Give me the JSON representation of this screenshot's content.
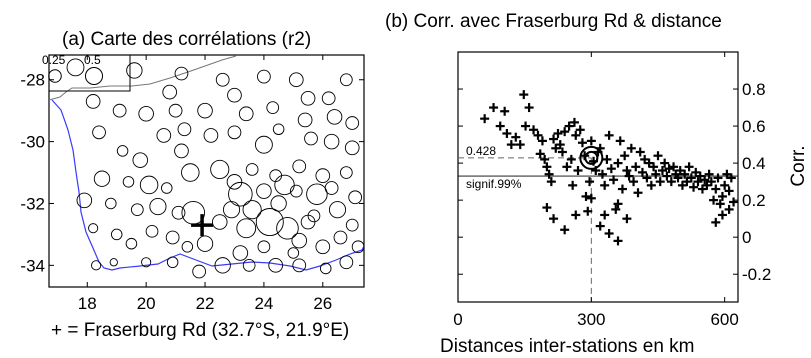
{
  "chart_data": [
    {
      "type": "scatter",
      "subtype": "bubble-map",
      "title": "(a) Carte des corrélations (r2)",
      "xlabel": "+ = Fraserburg Rd (32.7°S, 21.9°E)",
      "ylabel": "",
      "xlim": [
        16.7,
        27.4
      ],
      "ylim": [
        -34.7,
        -27.2
      ],
      "xticks": [
        18,
        20,
        22,
        24,
        26
      ],
      "yticks": [
        -28,
        -30,
        -32,
        -34
      ],
      "xtick_labels": [
        "18",
        "20",
        "22",
        "24",
        "26"
      ],
      "ytick_labels": [
        "-28",
        "-30",
        "-32",
        "-34"
      ],
      "size_legend": [
        {
          "label": "0.25",
          "r2": 0.25
        },
        {
          "label": "0.5",
          "r2": 0.5
        }
      ],
      "station": {
        "lon": 21.9,
        "lat": -32.7,
        "marker": "+"
      },
      "coastline_color": "#3a3aff",
      "points": [
        [
          17.6,
          -27.6,
          0.1
        ],
        [
          19.6,
          -27.7,
          0.08
        ],
        [
          20.8,
          -28.4,
          0.06
        ],
        [
          21.2,
          -27.8,
          0.05
        ],
        [
          22.6,
          -28.0,
          0.05
        ],
        [
          23.0,
          -28.5,
          0.06
        ],
        [
          24.0,
          -27.9,
          0.05
        ],
        [
          25.1,
          -28.0,
          0.06
        ],
        [
          25.5,
          -28.6,
          0.06
        ],
        [
          26.2,
          -28.6,
          0.05
        ],
        [
          26.8,
          -28.0,
          0.04
        ],
        [
          18.2,
          -28.7,
          0.06
        ],
        [
          19.1,
          -29.0,
          0.05
        ],
        [
          20.0,
          -29.1,
          0.07
        ],
        [
          21.0,
          -29.0,
          0.05
        ],
        [
          22.0,
          -29.0,
          0.07
        ],
        [
          23.4,
          -29.1,
          0.06
        ],
        [
          24.3,
          -28.9,
          0.04
        ],
        [
          25.4,
          -29.3,
          0.06
        ],
        [
          26.4,
          -29.2,
          0.07
        ],
        [
          27.0,
          -29.4,
          0.05
        ],
        [
          18.4,
          -29.7,
          0.05
        ],
        [
          19.2,
          -30.3,
          0.03
        ],
        [
          19.8,
          -30.6,
          0.07
        ],
        [
          20.6,
          -29.8,
          0.06
        ],
        [
          21.3,
          -29.6,
          0.05
        ],
        [
          22.2,
          -29.8,
          0.06
        ],
        [
          23.0,
          -29.7,
          0.05
        ],
        [
          24.0,
          -30.1,
          0.1
        ],
        [
          24.5,
          -29.6,
          0.03
        ],
        [
          25.6,
          -29.9,
          0.05
        ],
        [
          26.3,
          -30.0,
          0.07
        ],
        [
          27.0,
          -30.2,
          0.06
        ],
        [
          18.5,
          -31.2,
          0.08
        ],
        [
          19.4,
          -31.3,
          0.03
        ],
        [
          20.1,
          -31.4,
          0.11
        ],
        [
          20.7,
          -31.5,
          0.03
        ],
        [
          21.5,
          -31.0,
          0.11
        ],
        [
          22.5,
          -30.9,
          0.12
        ],
        [
          23.0,
          -31.3,
          0.07
        ],
        [
          23.6,
          -30.9,
          0.04
        ],
        [
          24.4,
          -31.1,
          0.04
        ],
        [
          25.2,
          -30.8,
          0.05
        ],
        [
          26.0,
          -31.1,
          0.06
        ],
        [
          26.8,
          -31.0,
          0.04
        ],
        [
          17.9,
          -31.9,
          0.07
        ],
        [
          18.8,
          -32.0,
          0.03
        ],
        [
          19.7,
          -32.2,
          0.04
        ],
        [
          20.4,
          -32.1,
          0.09
        ],
        [
          21.1,
          -32.3,
          0.05
        ],
        [
          21.6,
          -32.3,
          0.2
        ],
        [
          22.5,
          -32.6,
          0.07
        ],
        [
          23.2,
          -31.7,
          0.22
        ],
        [
          24.0,
          -31.6,
          0.07
        ],
        [
          24.5,
          -32.0,
          0.08
        ],
        [
          25.1,
          -31.6,
          0.04
        ],
        [
          25.8,
          -31.7,
          0.16
        ],
        [
          26.5,
          -32.2,
          0.09
        ],
        [
          27.1,
          -31.8,
          0.05
        ],
        [
          18.2,
          -32.8,
          0.02
        ],
        [
          19.0,
          -33.0,
          0.03
        ],
        [
          19.5,
          -33.3,
          0.03
        ],
        [
          20.2,
          -32.9,
          0.04
        ],
        [
          20.9,
          -33.1,
          0.05
        ],
        [
          21.4,
          -33.4,
          0.03
        ],
        [
          22.0,
          -33.3,
          0.08
        ],
        [
          23.4,
          -32.8,
          0.13
        ],
        [
          23.2,
          -33.6,
          0.07
        ],
        [
          24.2,
          -32.6,
          0.3
        ],
        [
          24.0,
          -33.4,
          0.04
        ],
        [
          24.8,
          -32.8,
          0.18
        ],
        [
          25.2,
          -33.2,
          0.07
        ],
        [
          25.5,
          -32.6,
          0.06
        ],
        [
          26.0,
          -33.4,
          0.06
        ],
        [
          26.6,
          -33.1,
          0.05
        ],
        [
          27.0,
          -32.7,
          0.04
        ],
        [
          18.3,
          -34.0,
          0.02
        ],
        [
          18.9,
          -33.9,
          0.01
        ],
        [
          20.0,
          -33.9,
          0.02
        ],
        [
          20.9,
          -33.9,
          0.03
        ],
        [
          21.8,
          -34.2,
          0.05
        ],
        [
          22.6,
          -34.0,
          0.08
        ],
        [
          23.5,
          -34.0,
          0.04
        ],
        [
          24.4,
          -34.0,
          0.06
        ],
        [
          25.2,
          -34.0,
          0.05
        ],
        [
          26.1,
          -34.1,
          0.03
        ],
        [
          26.8,
          -33.9,
          0.05
        ],
        [
          27.2,
          -33.4,
          0.04
        ],
        [
          22.9,
          -32.2,
          0.09
        ],
        [
          24.7,
          -31.4,
          0.14
        ],
        [
          25.7,
          -32.4,
          0.04
        ],
        [
          26.3,
          -31.5,
          0.05
        ],
        [
          25.0,
          -33.6,
          0.03
        ],
        [
          21.2,
          -30.3,
          0.06
        ],
        [
          23.6,
          -32.2,
          0.12
        ]
      ]
    },
    {
      "type": "scatter",
      "title": "(b) Corr. avec Fraserburg Rd & distance",
      "xlabel": "Distances inter-stations en km",
      "ylabel": "Corr.",
      "xlim": [
        0,
        630
      ],
      "ylim": [
        -0.35,
        1.0
      ],
      "xticks": [
        0,
        300,
        600
      ],
      "yticks": [
        -0.2,
        0,
        0.2,
        0.4,
        0.6,
        0.8
      ],
      "xtick_labels": [
        "0",
        "300",
        "600"
      ],
      "ytick_labels": [
        "-0.2",
        "0",
        "0.2",
        "0.4",
        "0.6",
        "0.8"
      ],
      "yaxis_position": "right",
      "highlight": {
        "x": 300,
        "y": 0.428,
        "label": "0.428"
      },
      "threshold": {
        "y": 0.33,
        "label": "signif.99%"
      },
      "points": [
        [
          60,
          0.64
        ],
        [
          80,
          0.7
        ],
        [
          95,
          0.6
        ],
        [
          105,
          0.68
        ],
        [
          110,
          0.56
        ],
        [
          120,
          0.5
        ],
        [
          130,
          0.54
        ],
        [
          140,
          0.5
        ],
        [
          148,
          0.77
        ],
        [
          152,
          0.6
        ],
        [
          160,
          0.7
        ],
        [
          170,
          0.58
        ],
        [
          180,
          0.55
        ],
        [
          185,
          0.45
        ],
        [
          190,
          0.52
        ],
        [
          195,
          0.42
        ],
        [
          200,
          0.38
        ],
        [
          205,
          0.34
        ],
        [
          210,
          0.3
        ],
        [
          215,
          0.53
        ],
        [
          220,
          0.48
        ],
        [
          225,
          0.56
        ],
        [
          230,
          0.5
        ],
        [
          235,
          0.46
        ],
        [
          240,
          0.57
        ],
        [
          245,
          0.38
        ],
        [
          250,
          0.6
        ],
        [
          255,
          0.42
        ],
        [
          258,
          0.28
        ],
        [
          262,
          0.62
        ],
        [
          265,
          0.55
        ],
        [
          270,
          0.36
        ],
        [
          275,
          0.58
        ],
        [
          280,
          0.51
        ],
        [
          285,
          0.44
        ],
        [
          288,
          0.22
        ],
        [
          292,
          0.14
        ],
        [
          296,
          0.3
        ],
        [
          300,
          0.52
        ],
        [
          305,
          0.41
        ],
        [
          310,
          0.36
        ],
        [
          315,
          0.46
        ],
        [
          320,
          0.48
        ],
        [
          325,
          0.34
        ],
        [
          330,
          0.28
        ],
        [
          335,
          0.42
        ],
        [
          340,
          0.55
        ],
        [
          345,
          0.37
        ],
        [
          350,
          0.31
        ],
        [
          355,
          0.15
        ],
        [
          360,
          0.4
        ],
        [
          365,
          0.52
        ],
        [
          370,
          0.26
        ],
        [
          375,
          0.44
        ],
        [
          380,
          0.36
        ],
        [
          385,
          0.33
        ],
        [
          390,
          0.48
        ],
        [
          395,
          0.3
        ],
        [
          400,
          0.38
        ],
        [
          405,
          0.24
        ],
        [
          410,
          0.46
        ],
        [
          415,
          0.35
        ],
        [
          420,
          0.42
        ],
        [
          425,
          0.32
        ],
        [
          430,
          0.4
        ],
        [
          435,
          0.28
        ],
        [
          440,
          0.38
        ],
        [
          445,
          0.34
        ],
        [
          450,
          0.44
        ],
        [
          455,
          0.3
        ],
        [
          460,
          0.36
        ],
        [
          465,
          0.4
        ],
        [
          470,
          0.33
        ],
        [
          475,
          0.37
        ],
        [
          480,
          0.3
        ],
        [
          485,
          0.38
        ],
        [
          490,
          0.34
        ],
        [
          495,
          0.32
        ],
        [
          500,
          0.36
        ],
        [
          505,
          0.28
        ],
        [
          510,
          0.34
        ],
        [
          515,
          0.3
        ],
        [
          520,
          0.38
        ],
        [
          525,
          0.32
        ],
        [
          530,
          0.27
        ],
        [
          535,
          0.35
        ],
        [
          540,
          0.3
        ],
        [
          545,
          0.33
        ],
        [
          550,
          0.26
        ],
        [
          555,
          0.31
        ],
        [
          560,
          0.28
        ],
        [
          565,
          0.34
        ],
        [
          570,
          0.3
        ],
        [
          575,
          0.2
        ],
        [
          580,
          0.26
        ],
        [
          585,
          0.32
        ],
        [
          590,
          0.18
        ],
        [
          595,
          0.22
        ],
        [
          600,
          0.28
        ],
        [
          605,
          0.34
        ],
        [
          610,
          0.25
        ],
        [
          615,
          0.32
        ],
        [
          620,
          0.19
        ],
        [
          580,
          0.08
        ],
        [
          595,
          0.12
        ],
        [
          610,
          0.15
        ],
        [
          200,
          0.16
        ],
        [
          215,
          0.1
        ],
        [
          240,
          0.04
        ],
        [
          265,
          0.12
        ],
        [
          300,
          0.21
        ],
        [
          320,
          0.06
        ],
        [
          340,
          0.02
        ],
        [
          360,
          -0.02
        ],
        [
          380,
          0.1
        ],
        [
          360,
          0.18
        ],
        [
          330,
          0.12
        ]
      ]
    }
  ]
}
